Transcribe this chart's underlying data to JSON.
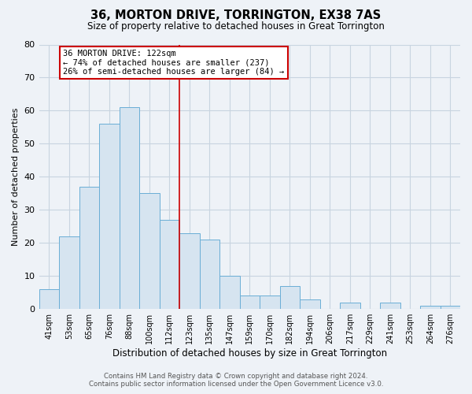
{
  "title": "36, MORTON DRIVE, TORRINGTON, EX38 7AS",
  "subtitle": "Size of property relative to detached houses in Great Torrington",
  "xlabel": "Distribution of detached houses by size in Great Torrington",
  "ylabel": "Number of detached properties",
  "bin_labels": [
    "41sqm",
    "53sqm",
    "65sqm",
    "76sqm",
    "88sqm",
    "100sqm",
    "112sqm",
    "123sqm",
    "135sqm",
    "147sqm",
    "159sqm",
    "170sqm",
    "182sqm",
    "194sqm",
    "206sqm",
    "217sqm",
    "229sqm",
    "241sqm",
    "253sqm",
    "264sqm",
    "276sqm"
  ],
  "bin_values": [
    6,
    22,
    37,
    56,
    61,
    35,
    27,
    23,
    21,
    10,
    4,
    4,
    7,
    3,
    0,
    2,
    0,
    2,
    0,
    1,
    1
  ],
  "bar_color": "#d6e4f0",
  "bar_edge_color": "#6aaed6",
  "vline_x": 6.5,
  "vline_color": "#cc0000",
  "annotation_title": "36 MORTON DRIVE: 122sqm",
  "annotation_line1": "← 74% of detached houses are smaller (237)",
  "annotation_line2": "26% of semi-detached houses are larger (84) →",
  "annotation_box_color": "#cc0000",
  "ylim": [
    0,
    80
  ],
  "yticks": [
    0,
    10,
    20,
    30,
    40,
    50,
    60,
    70,
    80
  ],
  "footer_line1": "Contains HM Land Registry data © Crown copyright and database right 2024.",
  "footer_line2": "Contains public sector information licensed under the Open Government Licence v3.0.",
  "bg_color": "#eef2f7",
  "plot_bg_color": "#eef2f7",
  "grid_color": "#c8d4e0"
}
